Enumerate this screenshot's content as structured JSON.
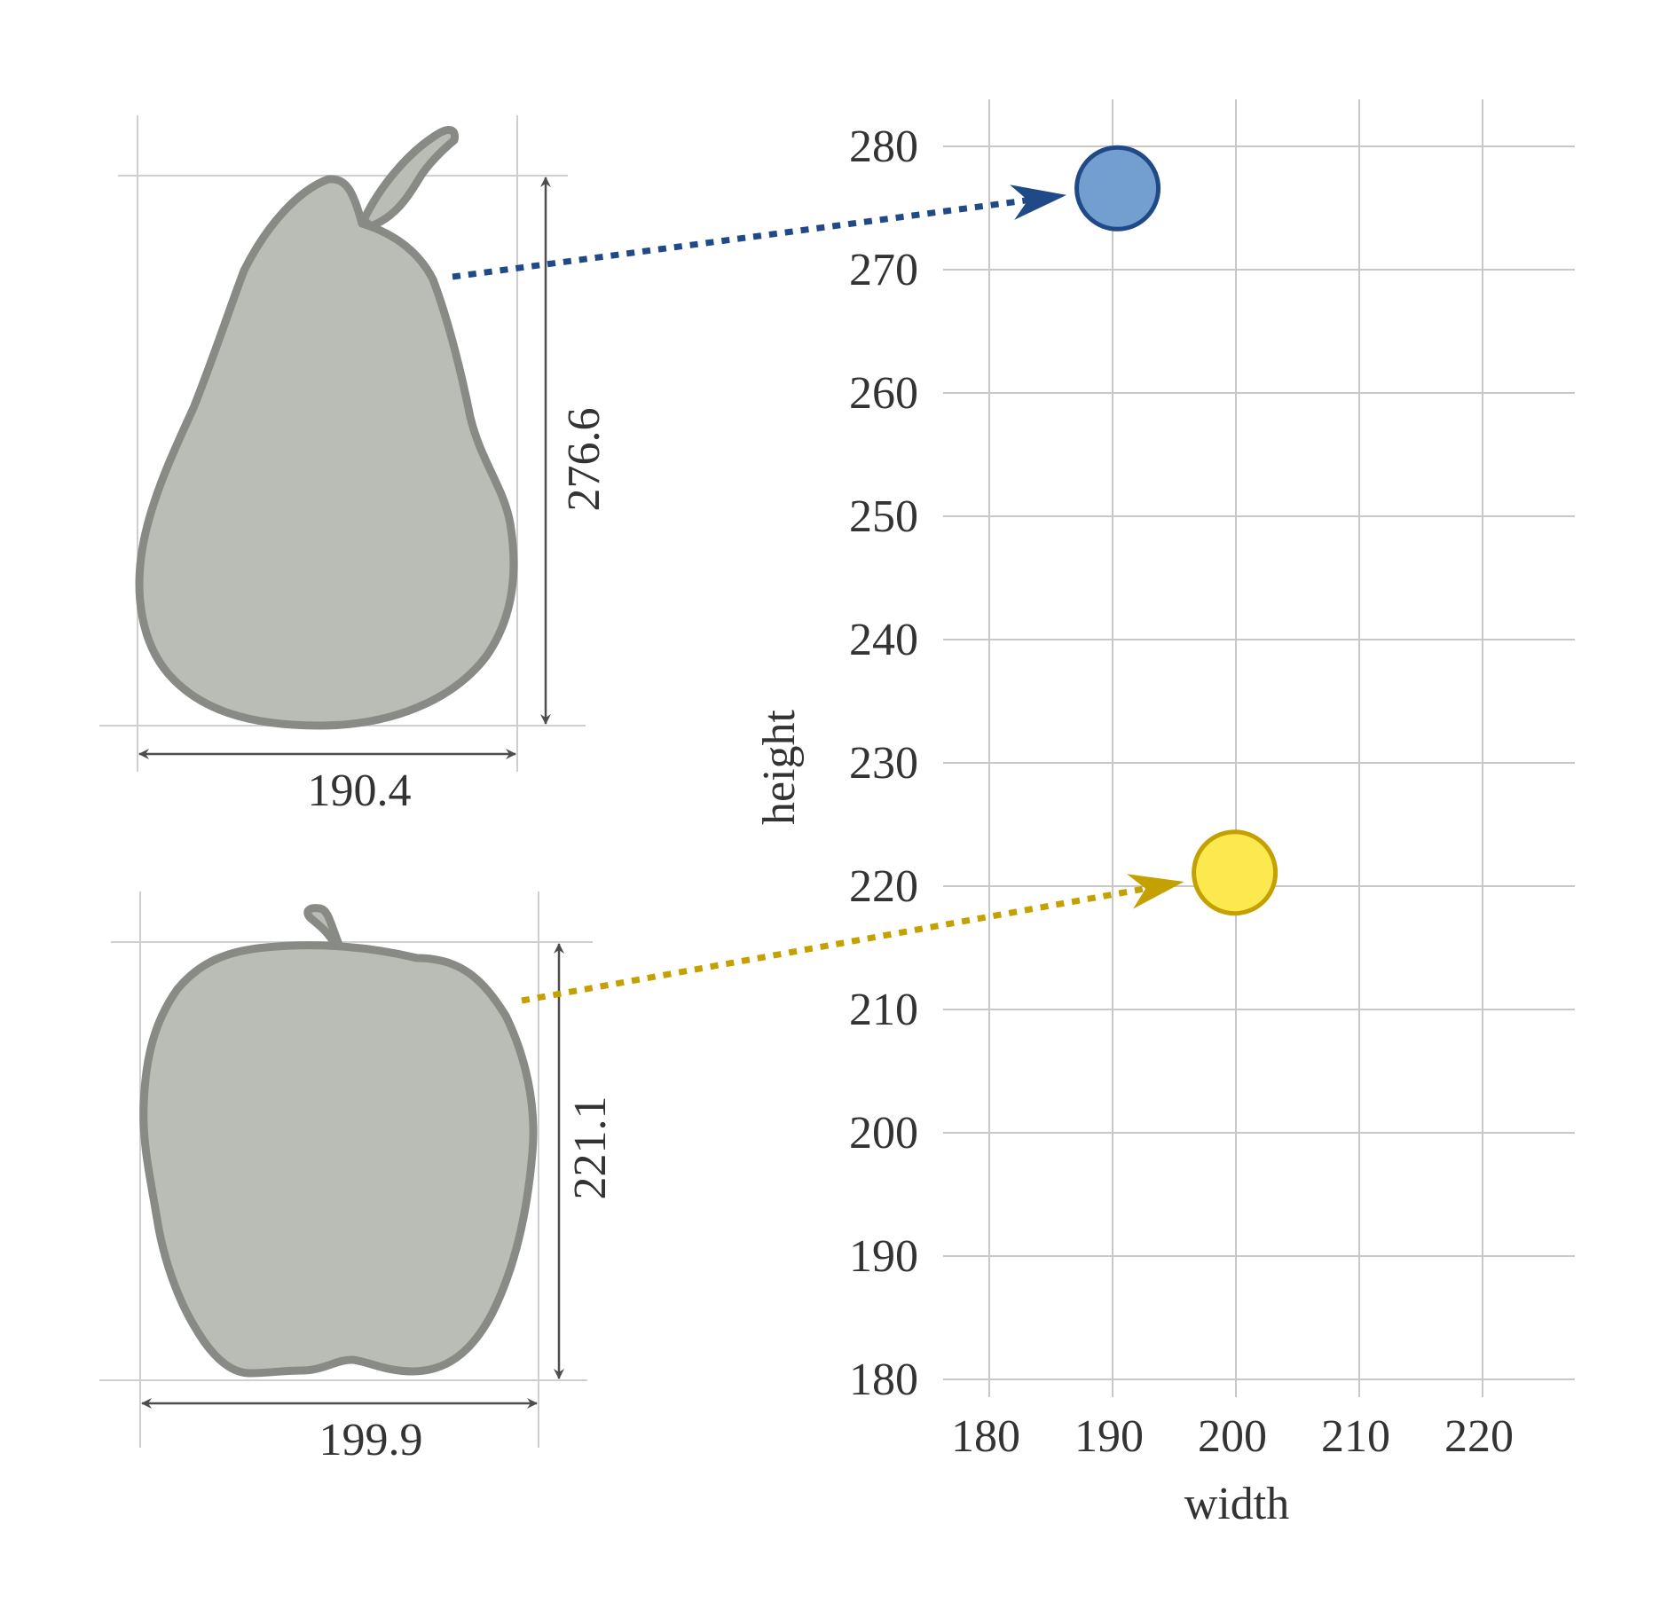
{
  "chart_data": {
    "type": "scatter",
    "xlabel": "width",
    "ylabel": "height",
    "xlim": [
      180,
      220
    ],
    "ylim": [
      180,
      280
    ],
    "x_ticks": [
      "180",
      "190",
      "200",
      "210",
      "220"
    ],
    "y_ticks": [
      "180",
      "190",
      "200",
      "210",
      "220",
      "230",
      "240",
      "250",
      "260",
      "270",
      "280"
    ],
    "points": [
      {
        "fruit": "pear",
        "x": 190.4,
        "y": 276.6,
        "fill": "#729fcf",
        "stroke": "#204a87"
      },
      {
        "fruit": "apple",
        "x": 199.9,
        "y": 221.1,
        "fill": "#fce94f",
        "stroke": "#c4a000"
      }
    ]
  },
  "fruits": [
    {
      "icon": "pear-icon",
      "width_label": "190.4",
      "height_label": "276.6",
      "arrow_color": "#204a87"
    },
    {
      "icon": "apple-icon",
      "width_label": "199.9",
      "height_label": "221.1",
      "arrow_color": "#c4a000"
    }
  ]
}
